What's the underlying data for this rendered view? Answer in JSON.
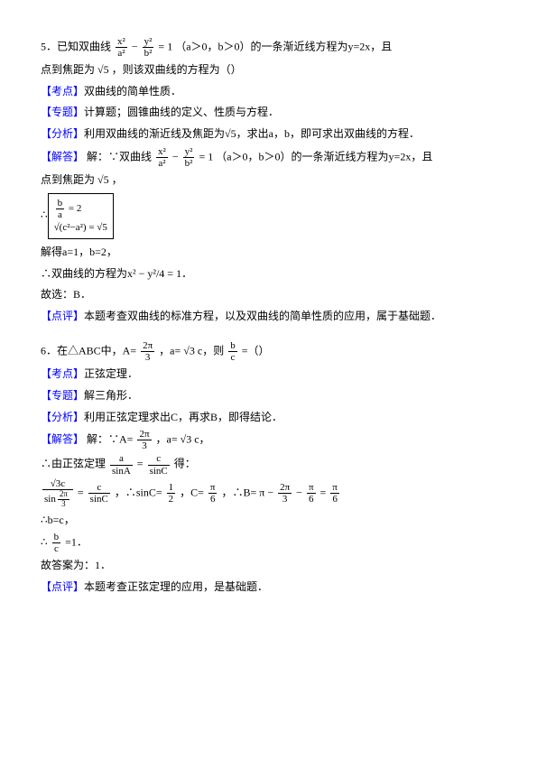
{
  "colors": {
    "text": "#000000",
    "label": "#0000ff",
    "background": "#ffffff",
    "border": "#000000"
  },
  "fontsize": 12,
  "p1": {
    "q_prefix": "5．已知双曲线",
    "q_eq": "− = 1",
    "q_suffix": "（a＞0，b＞0）的一条渐近线方程为y=2x，且",
    "q_line2_prefix": "点到焦距为",
    "q_sqrt5": "√5",
    "q_line2_suffix": "，则该双曲线的方程为（）"
  },
  "l1": {
    "label": "【考点】",
    "text": "双曲线的简单性质．"
  },
  "l2": {
    "label": "【专题】",
    "text": "计算题；圆锥曲线的定义、性质与方程．"
  },
  "l3": {
    "label": "【分析】",
    "text": "利用双曲线的渐近线及焦距为",
    "sqrt": "√5",
    "suffix": "，求出a，b，即可求出双曲线的方程．"
  },
  "l4": {
    "label": "【解答】",
    "text_prefix": "解：∵双曲线",
    "text_mid": "（a＞0，b＞0）的一条渐近线方程为y=2x，且",
    "text_line2": "点到焦距为",
    "sqrt": "√5",
    "comma": "，"
  },
  "box1": {
    "line1": "b/a = 2",
    "line2_lhs": "√(c²−a²)",
    "line2_rhs": "= √5"
  },
  "solve": "解得a=1，b=2，",
  "result": "∴双曲线的方程为x² − y²/4 = 1．",
  "choose": "故选：B．",
  "l5": {
    "label": "【点评】",
    "text": "本题考查双曲线的标准方程，以及双曲线的简单性质的应用，属于基础题．"
  },
  "p2": {
    "q_prefix": "6．在△ABC中，A=",
    "frac1_num": "2π",
    "frac1_den": "3",
    "q_mid": "，a=",
    "sqrt3": "√3",
    "q_mid2": "c，则",
    "frac2_num": "b",
    "frac2_den": "c",
    "q_suffix": "=（）"
  },
  "l6": {
    "label": "【考点】",
    "text": "正弦定理．"
  },
  "l7": {
    "label": "【专题】",
    "text": "解三角形．"
  },
  "l8": {
    "label": "【分析】",
    "text": "利用正弦定理求出C，再求B，即得结论．"
  },
  "l9": {
    "label": "【解答】",
    "text": "解：∵A=",
    "frac_num": "2π",
    "frac_den": "3",
    "mid": "，a=",
    "sqrt": "√3",
    "suffix": "c，"
  },
  "sine_rule": {
    "prefix": "∴由正弦定理",
    "eq_lhs_num": "a",
    "eq_lhs_den": "sinA",
    "eq_rhs_num": "c",
    "eq_rhs_den": "sinC",
    "suffix": "得："
  },
  "calc": {
    "lhs_num": "√3c",
    "lhs_den_prefix": "sin",
    "lhs_den_frac_num": "2π",
    "lhs_den_frac_den": "3",
    "eq1": "=",
    "mid_num": "c",
    "mid_den": "sinC",
    "arrow": "，∴sinC=",
    "val_num": "1",
    "val_den": "2",
    "cval": "，C=",
    "c_num": "π",
    "c_den": "6",
    "bval": "，∴B=",
    "b_expr": "π −",
    "b_frac1_num": "2π",
    "b_frac1_den": "3",
    "b_minus": "−",
    "b_frac2_num": "π",
    "b_frac2_den": "6",
    "b_eq": "=",
    "b_res_num": "π",
    "b_res_den": "6"
  },
  "bc": "∴b=c，",
  "ratio": {
    "prefix": "∴",
    "num": "b",
    "den": "c",
    "suffix": "=1．"
  },
  "ans2": "故答案为：1．",
  "l10": {
    "label": "【点评】",
    "text": "本题考查正弦定理的应用，是基础题．"
  }
}
